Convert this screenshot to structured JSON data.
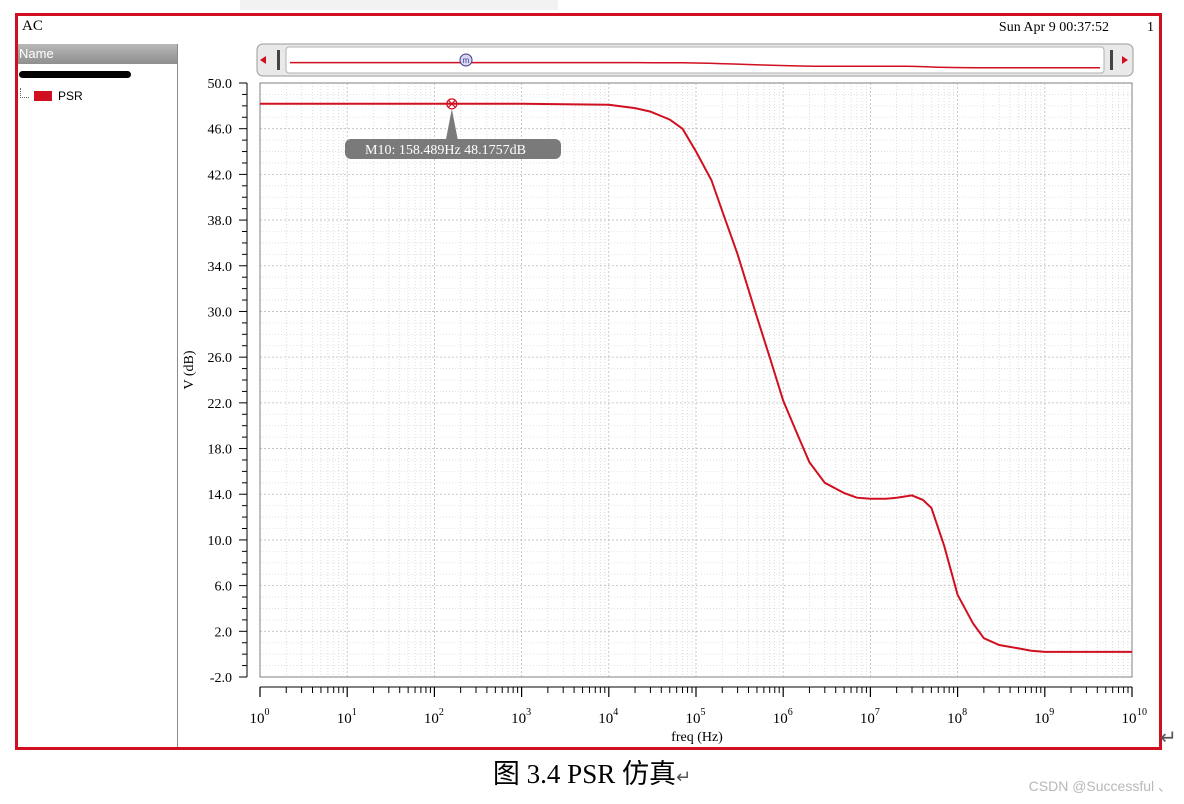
{
  "window": {
    "title": "AC",
    "timestamp": "Sun Apr 9 00:37:52",
    "page_number": "1"
  },
  "sidebar": {
    "header": "Name",
    "items": [
      {
        "label": "PSR",
        "color": "#d01020"
      }
    ]
  },
  "marker": {
    "id": "M10",
    "label": "M10: 158.489Hz 48.1757dB",
    "x": 158.489,
    "y": 48.1757
  },
  "caption": "图 3.4 PSR 仿真",
  "caption_return_mark": "↵",
  "outer_return_mark": "↵",
  "watermark": "CSDN @Successful 、",
  "colors": {
    "trace": "#d01020",
    "frame_border": "#d01020",
    "grid": "#c8c8c8",
    "marker_label_bg": "#7a7a7a"
  },
  "chart_data": {
    "type": "line",
    "xscale": "log",
    "xlabel": "freq (Hz)",
    "ylabel": "V (dB)",
    "xlim": [
      1,
      10000000000
    ],
    "ylim": [
      -2,
      50
    ],
    "x_ticks": [
      {
        "base": "10",
        "exp": "0"
      },
      {
        "base": "10",
        "exp": "1"
      },
      {
        "base": "10",
        "exp": "2"
      },
      {
        "base": "10",
        "exp": "3"
      },
      {
        "base": "10",
        "exp": "4"
      },
      {
        "base": "10",
        "exp": "5"
      },
      {
        "base": "10",
        "exp": "6"
      },
      {
        "base": "10",
        "exp": "7"
      },
      {
        "base": "10",
        "exp": "8"
      },
      {
        "base": "10",
        "exp": "9"
      },
      {
        "base": "10",
        "exp": "10"
      }
    ],
    "y_ticks": [
      "-2.0",
      "2.0",
      "6.0",
      "10.0",
      "14.0",
      "18.0",
      "22.0",
      "26.0",
      "30.0",
      "34.0",
      "38.0",
      "42.0",
      "46.0",
      "50.0"
    ],
    "grid": true,
    "series": [
      {
        "name": "PSR",
        "color": "#d01020",
        "x": [
          1,
          10,
          100,
          1000,
          10000,
          20000,
          30000,
          50000,
          70000,
          100000,
          150000,
          200000,
          300000,
          500000,
          700000,
          1000000,
          1500000,
          2000000,
          3000000,
          5000000,
          7000000,
          10000000,
          15000000,
          20000000,
          30000000,
          40000000,
          50000000,
          70000000,
          100000000,
          150000000,
          200000000,
          300000000,
          500000000,
          700000000,
          1000000000,
          2000000000,
          5000000000,
          10000000000
        ],
        "y": [
          48.18,
          48.18,
          48.18,
          48.18,
          48.1,
          47.8,
          47.5,
          46.8,
          46.0,
          44.0,
          41.5,
          38.8,
          35.0,
          29.5,
          26.0,
          22.2,
          19.0,
          16.8,
          15.0,
          14.1,
          13.7,
          13.6,
          13.6,
          13.7,
          13.9,
          13.5,
          12.8,
          9.5,
          5.2,
          2.7,
          1.4,
          0.8,
          0.5,
          0.3,
          0.2,
          0.2,
          0.2,
          0.2
        ]
      }
    ]
  }
}
